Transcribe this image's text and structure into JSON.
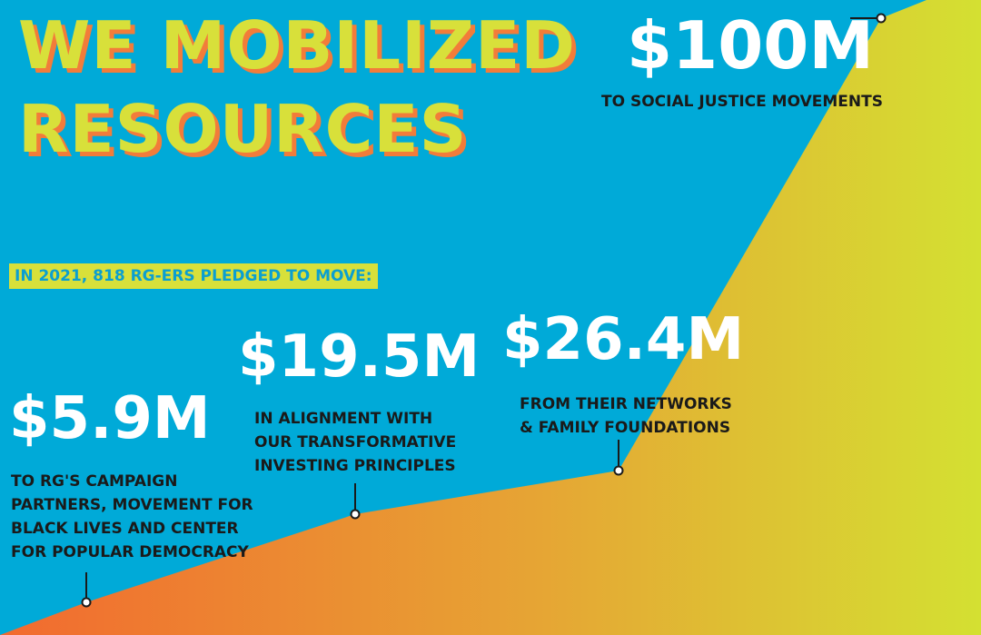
{
  "title": {
    "line1": "WE MOBILIZED",
    "line2": "RESOURCES"
  },
  "subtitle": "IN 2021, 818 RG-ERS PLEDGED TO MOVE:",
  "items": [
    {
      "amount": "$5.9M",
      "lines": [
        "TO RG'S CAMPAIGN",
        "PARTNERS, MOVEMENT FOR",
        "BLACK LIVES AND CENTER",
        "FOR POPULAR DEMOCRACY"
      ]
    },
    {
      "amount": "$19.5M",
      "lines": [
        "IN ALIGNMENT WITH",
        "OUR TRANSFORMATIVE",
        "INVESTING PRINCIPLES"
      ]
    },
    {
      "amount": "$26.4M",
      "lines": [
        "FROM THEIR NETWORKS",
        "& FAMILY FOUNDATIONS"
      ]
    },
    {
      "amount": "$100M",
      "lines": [
        "TO SOCIAL JUSTICE MOVEMENTS"
      ]
    }
  ],
  "colors": {
    "background": "#00aad8",
    "gradient_start": "#f26a2f",
    "gradient_mid": "#e6a534",
    "gradient_end": "#d4e032",
    "title_fill": "#d8e03a",
    "title_shadow": "#f27c3a",
    "amount_text": "#ffffff",
    "desc_text": "#1a1a1a"
  }
}
